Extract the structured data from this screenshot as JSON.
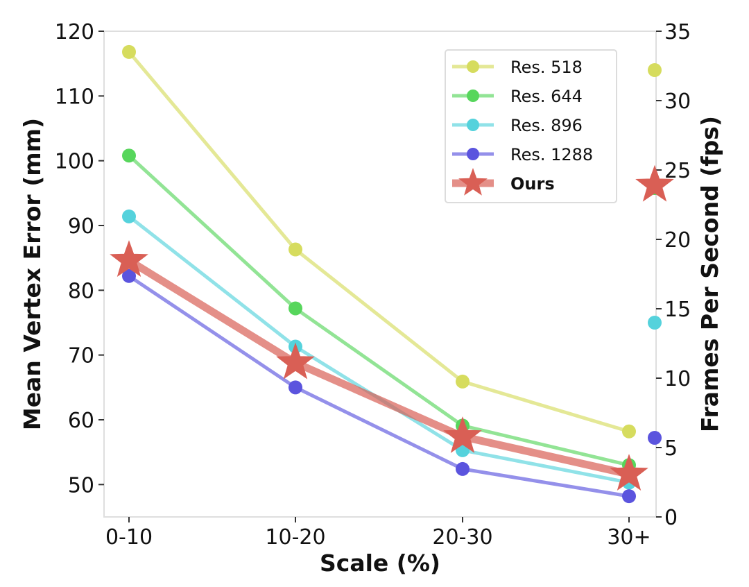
{
  "chart_data": {
    "type": "line",
    "categories": [
      "0-10",
      "10-20",
      "20-30",
      "30+"
    ],
    "xlabel": "Scale (%)",
    "ylabel": "Mean Vertex Error (mm)",
    "y2label": "Frames Per Second (fps)",
    "ylim": [
      45,
      120
    ],
    "y2lim": [
      0,
      35
    ],
    "yticks": [
      50,
      60,
      70,
      80,
      90,
      100,
      110,
      120
    ],
    "y2ticks": [
      0,
      5,
      10,
      15,
      20,
      25,
      30,
      35
    ],
    "legend_position": "top-right",
    "series": [
      {
        "name": "Res. 518",
        "color": "#d6dc5e",
        "values": [
          116.8,
          86.3,
          65.9,
          58.2
        ],
        "fps": 32.2,
        "marker": "circle"
      },
      {
        "name": "Res. 644",
        "color": "#57d65c",
        "values": [
          100.8,
          77.2,
          59.1,
          53.0
        ],
        "fps": 23.7,
        "marker": "circle"
      },
      {
        "name": "Res. 896",
        "color": "#55d2dc",
        "values": [
          91.4,
          71.3,
          55.3,
          50.3
        ],
        "fps": 14.0,
        "marker": "circle"
      },
      {
        "name": "Res. 1288",
        "color": "#5b54de",
        "values": [
          82.2,
          65.0,
          52.4,
          48.2
        ],
        "fps": 5.7,
        "marker": "circle"
      },
      {
        "name": "Ours",
        "color": "#d95f55",
        "values": [
          84.6,
          68.8,
          57.4,
          51.6
        ],
        "fps": 23.9,
        "marker": "star",
        "bold": true
      }
    ]
  }
}
